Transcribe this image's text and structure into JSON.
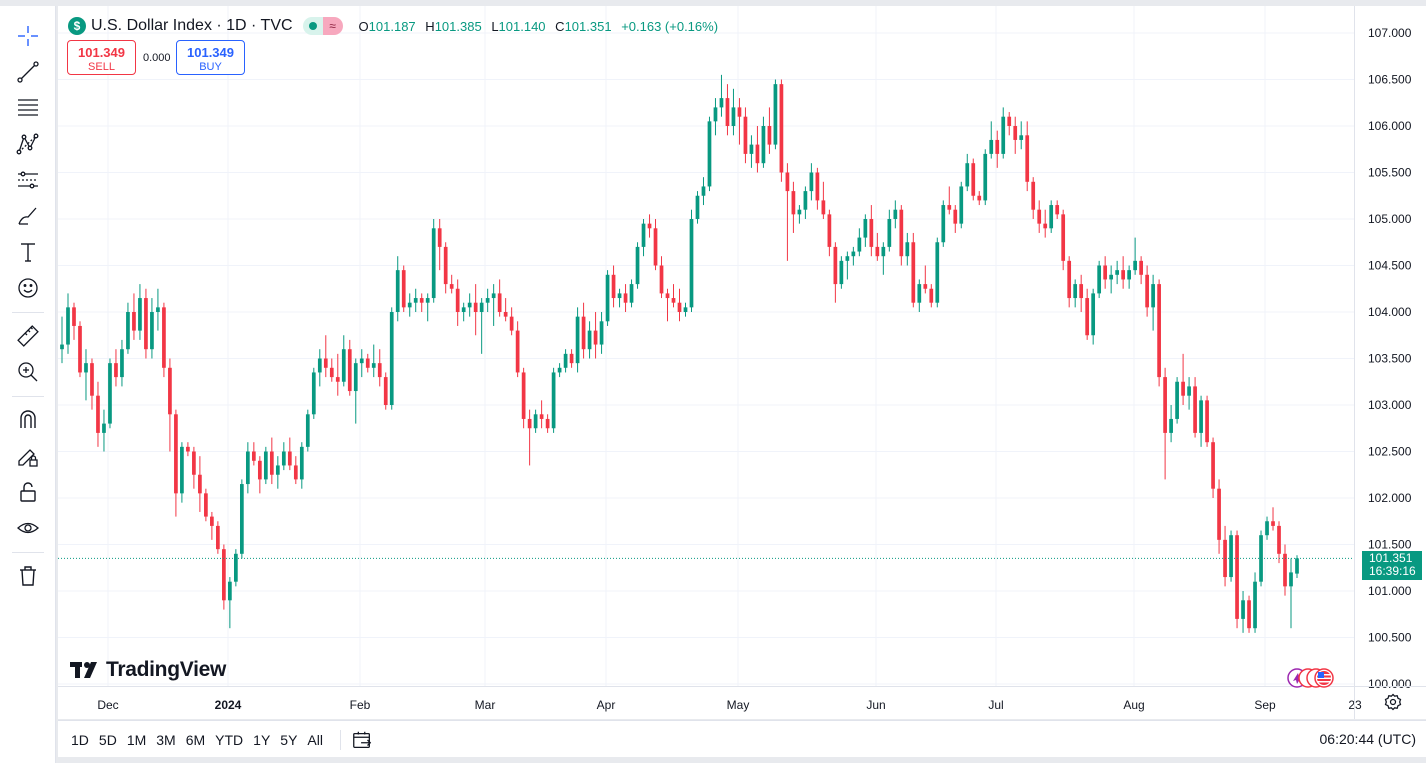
{
  "legend": {
    "symbol_logo": "$",
    "title": "U.S. Dollar Index · 1D · TVC",
    "open_label": "O",
    "open": "101.187",
    "high_label": "H",
    "high": "101.385",
    "low_label": "L",
    "low": "101.140",
    "close_label": "C",
    "close": "101.351",
    "change": "+0.163 (+0.16%)"
  },
  "trade": {
    "sell_price": "101.349",
    "sell_label": "SELL",
    "spread": "0.000",
    "buy_price": "101.349",
    "buy_label": "BUY"
  },
  "watermark": "TradingView",
  "last_price_tag": {
    "price": "101.351",
    "countdown": "16:39:16"
  },
  "ranges": [
    "1D",
    "5D",
    "1M",
    "3M",
    "6M",
    "YTD",
    "1Y",
    "5Y",
    "All"
  ],
  "clock": "06:20:44 (UTC)",
  "toolbar_icons": [
    "crosshair-icon",
    "trend-line-icon",
    "fib-lines-icon",
    "pattern-icon",
    "prediction-icon",
    "brush-icon",
    "text-icon",
    "emoji-icon",
    "ruler-icon",
    "zoom-in-icon",
    "magnet-icon",
    "lock-drawing-icon",
    "lock-icon",
    "eye-icon",
    "trash-icon"
  ],
  "colors": {
    "up": "#089981",
    "down": "#f23645",
    "grid": "#f0f3fa",
    "text": "#131722",
    "accent": "#2962ff"
  },
  "chart_data": {
    "type": "candlestick",
    "title": "U.S. Dollar Index",
    "interval": "1D",
    "y_axis": {
      "ticks": [
        100.0,
        100.5,
        101.0,
        101.5,
        102.0,
        102.5,
        103.0,
        103.5,
        104.0,
        104.5,
        105.0,
        105.5,
        106.0,
        106.5,
        107.0
      ],
      "labels": [
        "100.000",
        "100.500",
        "101.000",
        "101.500",
        "102.000",
        "102.500",
        "103.000",
        "103.500",
        "104.000",
        "104.500",
        "105.000",
        "105.500",
        "106.000",
        "106.500",
        "107.000"
      ],
      "range": [
        99.9,
        107.3
      ],
      "position": "right"
    },
    "x_axis": {
      "labels": [
        "Dec",
        "2024",
        "Feb",
        "Mar",
        "Apr",
        "May",
        "Jun",
        "Jul",
        "Aug",
        "Sep",
        "23"
      ]
    },
    "last_price": 101.351,
    "candles_ohlc": [
      [
        103.6,
        103.95,
        103.45,
        103.65
      ],
      [
        103.65,
        104.2,
        103.55,
        104.05
      ],
      [
        104.05,
        104.1,
        103.7,
        103.85
      ],
      [
        103.85,
        103.9,
        103.3,
        103.35
      ],
      [
        103.35,
        103.6,
        103.05,
        103.45
      ],
      [
        103.45,
        103.5,
        102.95,
        103.1
      ],
      [
        103.1,
        103.25,
        102.55,
        102.7
      ],
      [
        102.7,
        102.95,
        102.5,
        102.8
      ],
      [
        102.8,
        103.5,
        102.75,
        103.45
      ],
      [
        103.45,
        103.6,
        103.2,
        103.3
      ],
      [
        103.3,
        103.7,
        103.2,
        103.6
      ],
      [
        103.6,
        104.1,
        103.55,
        104.0
      ],
      [
        104.0,
        104.2,
        103.7,
        103.8
      ],
      [
        103.8,
        104.3,
        103.7,
        104.15
      ],
      [
        104.15,
        104.25,
        103.5,
        103.6
      ],
      [
        103.6,
        104.15,
        103.5,
        104.0
      ],
      [
        104.0,
        104.25,
        103.8,
        104.05
      ],
      [
        104.05,
        104.1,
        103.3,
        103.4
      ],
      [
        103.4,
        103.5,
        102.5,
        102.9
      ],
      [
        102.9,
        102.95,
        101.8,
        102.05
      ],
      [
        102.05,
        102.6,
        101.95,
        102.55
      ],
      [
        102.55,
        102.6,
        102.45,
        102.5
      ],
      [
        102.5,
        102.55,
        102.1,
        102.25
      ],
      [
        102.25,
        102.45,
        101.85,
        102.05
      ],
      [
        102.05,
        102.1,
        101.75,
        101.8
      ],
      [
        101.8,
        101.85,
        101.55,
        101.7
      ],
      [
        101.7,
        101.75,
        101.4,
        101.45
      ],
      [
        101.45,
        101.5,
        100.8,
        100.9
      ],
      [
        100.9,
        101.15,
        100.6,
        101.1
      ],
      [
        101.1,
        101.45,
        101.05,
        101.4
      ],
      [
        101.4,
        102.2,
        101.35,
        102.15
      ],
      [
        102.15,
        102.6,
        102.05,
        102.5
      ],
      [
        102.5,
        102.6,
        102.35,
        102.4
      ],
      [
        102.4,
        102.45,
        102.05,
        102.2
      ],
      [
        102.2,
        102.55,
        102.15,
        102.5
      ],
      [
        102.5,
        102.65,
        102.15,
        102.25
      ],
      [
        102.25,
        102.45,
        102.1,
        102.35
      ],
      [
        102.35,
        102.6,
        102.3,
        102.5
      ],
      [
        102.5,
        102.65,
        102.3,
        102.35
      ],
      [
        102.35,
        102.45,
        102.15,
        102.2
      ],
      [
        102.2,
        102.6,
        102.1,
        102.55
      ],
      [
        102.55,
        102.95,
        102.5,
        102.9
      ],
      [
        102.9,
        103.4,
        102.85,
        103.35
      ],
      [
        103.35,
        103.6,
        103.2,
        103.5
      ],
      [
        103.5,
        103.75,
        103.3,
        103.4
      ],
      [
        103.4,
        103.5,
        103.25,
        103.3
      ],
      [
        103.3,
        103.55,
        103.1,
        103.25
      ],
      [
        103.25,
        103.75,
        103.2,
        103.6
      ],
      [
        103.6,
        103.7,
        103.1,
        103.15
      ],
      [
        103.15,
        103.5,
        102.8,
        103.45
      ],
      [
        103.45,
        103.6,
        103.3,
        103.5
      ],
      [
        103.5,
        103.55,
        103.35,
        103.4
      ],
      [
        103.4,
        103.65,
        103.3,
        103.45
      ],
      [
        103.45,
        103.6,
        103.2,
        103.3
      ],
      [
        103.3,
        103.35,
        102.95,
        103.0
      ],
      [
        103.0,
        104.05,
        102.95,
        104.0
      ],
      [
        104.0,
        104.6,
        103.9,
        104.45
      ],
      [
        104.45,
        104.5,
        104.0,
        104.05
      ],
      [
        104.05,
        104.2,
        103.95,
        104.1
      ],
      [
        104.1,
        104.25,
        104.0,
        104.15
      ],
      [
        104.15,
        104.2,
        104.0,
        104.1
      ],
      [
        104.1,
        104.2,
        103.9,
        104.15
      ],
      [
        104.15,
        105.0,
        104.1,
        104.9
      ],
      [
        104.9,
        105.0,
        104.45,
        104.7
      ],
      [
        104.7,
        104.75,
        104.2,
        104.3
      ],
      [
        104.3,
        104.4,
        104.2,
        104.25
      ],
      [
        104.25,
        104.35,
        103.85,
        104.0
      ],
      [
        104.0,
        104.1,
        103.9,
        104.05
      ],
      [
        104.05,
        104.2,
        103.95,
        104.1
      ],
      [
        104.1,
        104.3,
        103.75,
        104.0
      ],
      [
        104.0,
        104.15,
        103.55,
        104.1
      ],
      [
        104.1,
        104.25,
        104.0,
        104.15
      ],
      [
        104.15,
        104.3,
        103.85,
        104.2
      ],
      [
        104.2,
        104.35,
        103.95,
        104.0
      ],
      [
        104.0,
        104.15,
        103.9,
        103.95
      ],
      [
        103.95,
        104.05,
        103.75,
        103.8
      ],
      [
        103.8,
        103.9,
        103.3,
        103.35
      ],
      [
        103.35,
        103.4,
        102.75,
        102.85
      ],
      [
        102.85,
        102.95,
        102.35,
        102.75
      ],
      [
        102.75,
        102.95,
        102.7,
        102.9
      ],
      [
        102.9,
        103.05,
        102.75,
        102.85
      ],
      [
        102.85,
        102.9,
        102.7,
        102.75
      ],
      [
        102.75,
        103.4,
        102.7,
        103.35
      ],
      [
        103.35,
        103.45,
        103.3,
        103.4
      ],
      [
        103.4,
        103.6,
        103.35,
        103.55
      ],
      [
        103.55,
        103.6,
        103.4,
        103.45
      ],
      [
        103.45,
        104.05,
        103.35,
        103.95
      ],
      [
        103.95,
        104.1,
        103.5,
        103.6
      ],
      [
        103.6,
        103.9,
        103.5,
        103.8
      ],
      [
        103.8,
        104.0,
        103.5,
        103.65
      ],
      [
        103.65,
        104.0,
        103.55,
        103.9
      ],
      [
        103.9,
        104.45,
        103.85,
        104.4
      ],
      [
        104.4,
        104.5,
        104.05,
        104.15
      ],
      [
        104.15,
        104.25,
        104.05,
        104.2
      ],
      [
        104.2,
        104.3,
        104.0,
        104.1
      ],
      [
        104.1,
        104.35,
        104.05,
        104.3
      ],
      [
        104.3,
        104.75,
        104.25,
        104.7
      ],
      [
        104.7,
        105.0,
        104.6,
        104.95
      ],
      [
        104.95,
        105.05,
        104.8,
        104.9
      ],
      [
        104.9,
        105.0,
        104.45,
        104.5
      ],
      [
        104.5,
        104.6,
        104.15,
        104.2
      ],
      [
        104.2,
        104.25,
        103.9,
        104.15
      ],
      [
        104.15,
        104.3,
        104.05,
        104.1
      ],
      [
        104.1,
        104.25,
        103.9,
        104.0
      ],
      [
        104.0,
        104.1,
        103.95,
        104.05
      ],
      [
        104.05,
        105.1,
        104.0,
        105.0
      ],
      [
        105.0,
        105.3,
        104.95,
        105.25
      ],
      [
        105.25,
        105.45,
        105.15,
        105.35
      ],
      [
        105.35,
        106.1,
        105.3,
        106.05
      ],
      [
        106.05,
        106.3,
        105.9,
        106.2
      ],
      [
        106.2,
        106.55,
        106.1,
        106.3
      ],
      [
        106.3,
        106.45,
        105.9,
        106.0
      ],
      [
        106.0,
        106.4,
        105.9,
        106.2
      ],
      [
        106.2,
        106.3,
        105.8,
        106.1
      ],
      [
        106.1,
        106.2,
        105.6,
        105.7
      ],
      [
        105.7,
        105.9,
        105.55,
        105.8
      ],
      [
        105.8,
        106.0,
        105.5,
        105.6
      ],
      [
        105.6,
        106.1,
        105.55,
        106.0
      ],
      [
        106.0,
        106.2,
        105.7,
        105.8
      ],
      [
        105.8,
        106.5,
        105.75,
        106.45
      ],
      [
        106.45,
        106.5,
        105.4,
        105.5
      ],
      [
        105.5,
        105.6,
        104.55,
        105.3
      ],
      [
        105.3,
        105.4,
        104.85,
        105.05
      ],
      [
        105.05,
        105.15,
        104.95,
        105.1
      ],
      [
        105.1,
        105.35,
        105.0,
        105.3
      ],
      [
        105.3,
        105.6,
        105.2,
        105.5
      ],
      [
        105.5,
        105.55,
        105.1,
        105.2
      ],
      [
        105.2,
        105.4,
        105.0,
        105.05
      ],
      [
        105.05,
        105.1,
        104.6,
        104.7
      ],
      [
        104.7,
        104.75,
        104.1,
        104.3
      ],
      [
        104.3,
        104.6,
        104.25,
        104.55
      ],
      [
        104.55,
        104.65,
        104.35,
        104.6
      ],
      [
        104.6,
        104.7,
        104.5,
        104.65
      ],
      [
        104.65,
        104.9,
        104.6,
        104.8
      ],
      [
        104.8,
        105.05,
        104.7,
        105.0
      ],
      [
        105.0,
        105.15,
        104.6,
        104.7
      ],
      [
        104.7,
        104.85,
        104.55,
        104.6
      ],
      [
        104.6,
        104.75,
        104.4,
        104.7
      ],
      [
        104.7,
        105.1,
        104.65,
        105.0
      ],
      [
        105.0,
        105.2,
        104.9,
        105.1
      ],
      [
        105.1,
        105.15,
        104.5,
        104.6
      ],
      [
        104.6,
        104.85,
        104.5,
        104.75
      ],
      [
        104.75,
        104.85,
        104.05,
        104.1
      ],
      [
        104.1,
        104.35,
        104.0,
        104.3
      ],
      [
        104.3,
        104.5,
        104.2,
        104.25
      ],
      [
        104.25,
        104.3,
        104.05,
        104.1
      ],
      [
        104.1,
        104.8,
        104.05,
        104.75
      ],
      [
        104.75,
        105.2,
        104.7,
        105.15
      ],
      [
        105.15,
        105.35,
        105.05,
        105.1
      ],
      [
        105.1,
        105.15,
        104.85,
        104.95
      ],
      [
        104.95,
        105.4,
        104.9,
        105.35
      ],
      [
        105.35,
        105.7,
        105.3,
        105.6
      ],
      [
        105.6,
        105.65,
        105.2,
        105.25
      ],
      [
        105.25,
        105.3,
        105.15,
        105.2
      ],
      [
        105.2,
        105.75,
        105.15,
        105.7
      ],
      [
        105.7,
        106.05,
        105.65,
        105.85
      ],
      [
        105.85,
        105.95,
        105.55,
        105.7
      ],
      [
        105.7,
        106.2,
        105.65,
        106.1
      ],
      [
        106.1,
        106.15,
        105.9,
        106.0
      ],
      [
        106.0,
        106.1,
        105.7,
        105.85
      ],
      [
        105.85,
        106.05,
        105.75,
        105.9
      ],
      [
        105.9,
        106.05,
        105.3,
        105.4
      ],
      [
        105.4,
        105.45,
        105.0,
        105.1
      ],
      [
        105.1,
        105.2,
        104.85,
        104.95
      ],
      [
        104.95,
        105.1,
        104.8,
        104.9
      ],
      [
        104.9,
        105.2,
        104.85,
        105.15
      ],
      [
        105.15,
        105.2,
        105.0,
        105.05
      ],
      [
        105.05,
        105.1,
        104.45,
        104.55
      ],
      [
        104.55,
        104.6,
        104.05,
        104.15
      ],
      [
        104.15,
        104.35,
        104.05,
        104.3
      ],
      [
        104.3,
        104.4,
        104.0,
        104.15
      ],
      [
        104.15,
        104.25,
        103.7,
        103.75
      ],
      [
        103.75,
        104.25,
        103.65,
        104.2
      ],
      [
        104.2,
        104.55,
        104.15,
        104.5
      ],
      [
        104.5,
        104.6,
        104.25,
        104.35
      ],
      [
        104.35,
        104.5,
        104.2,
        104.4
      ],
      [
        104.4,
        104.55,
        104.3,
        104.45
      ],
      [
        104.45,
        104.6,
        104.25,
        104.35
      ],
      [
        104.35,
        104.5,
        104.25,
        104.45
      ],
      [
        104.45,
        104.8,
        104.4,
        104.55
      ],
      [
        104.55,
        104.6,
        104.3,
        104.4
      ],
      [
        104.4,
        104.5,
        103.95,
        104.05
      ],
      [
        104.05,
        104.4,
        103.8,
        104.3
      ],
      [
        104.3,
        104.35,
        103.2,
        103.3
      ],
      [
        103.3,
        103.4,
        102.2,
        102.7
      ],
      [
        102.7,
        103.0,
        102.6,
        102.85
      ],
      [
        102.85,
        103.3,
        102.8,
        103.25
      ],
      [
        103.25,
        103.55,
        103.0,
        103.1
      ],
      [
        103.1,
        103.3,
        102.95,
        103.2
      ],
      [
        103.2,
        103.3,
        102.65,
        102.7
      ],
      [
        102.7,
        103.1,
        102.55,
        103.05
      ],
      [
        103.05,
        103.1,
        102.55,
        102.6
      ],
      [
        102.6,
        102.65,
        102.0,
        102.1
      ],
      [
        102.1,
        102.2,
        101.4,
        101.55
      ],
      [
        101.55,
        101.7,
        101.05,
        101.15
      ],
      [
        101.15,
        101.65,
        101.1,
        101.6
      ],
      [
        101.6,
        101.65,
        100.6,
        100.7
      ],
      [
        100.7,
        101.0,
        100.55,
        100.9
      ],
      [
        100.9,
        100.95,
        100.55,
        100.6
      ],
      [
        100.6,
        101.2,
        100.55,
        101.1
      ],
      [
        101.1,
        101.65,
        101.05,
        101.6
      ],
      [
        101.6,
        101.8,
        101.55,
        101.75
      ],
      [
        101.75,
        101.9,
        101.65,
        101.7
      ],
      [
        101.7,
        101.75,
        101.3,
        101.4
      ],
      [
        101.4,
        101.5,
        100.95,
        101.05
      ],
      [
        101.05,
        101.35,
        100.6,
        101.2
      ],
      [
        101.187,
        101.385,
        101.14,
        101.351
      ]
    ]
  }
}
